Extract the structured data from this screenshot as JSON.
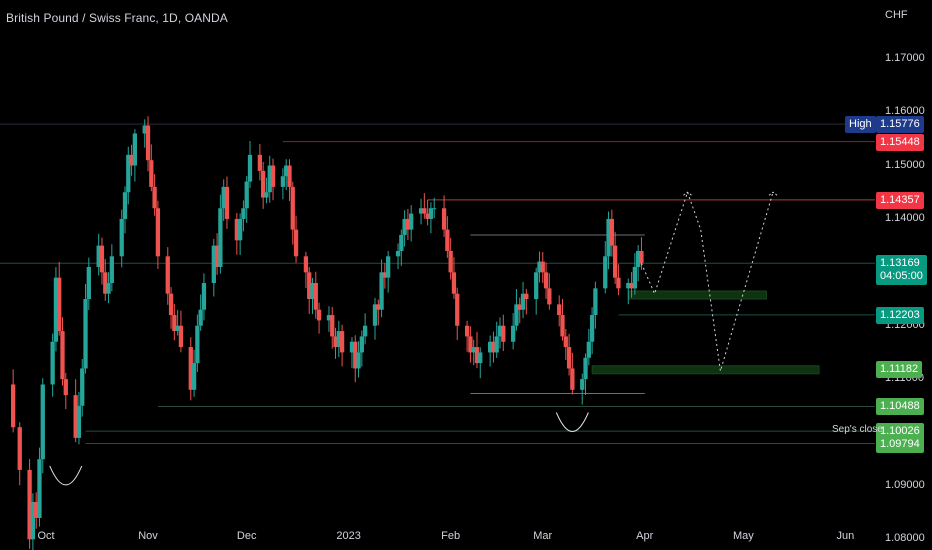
{
  "header": {
    "title": "British Pound / Swiss Franc, 1D, OANDA"
  },
  "axis": {
    "currency": "CHF"
  },
  "watermark": {
    "main": "",
    "sub": ""
  },
  "colors": {
    "up": "#26a69a",
    "down": "#ef5350",
    "green_label": "#4caf50",
    "teal_label": "#089981",
    "red_label": "#f23645",
    "navy_label": "#1e3a8a"
  },
  "chart_data": {
    "type": "candlestick",
    "title": "British Pound / Swiss Franc, 1D, OANDA",
    "symbol": "GBPCHF",
    "ylabel": "CHF",
    "ylim": [
      1.078,
      1.181
    ],
    "x_range": [
      "2022-09-17",
      "2023-06-10"
    ],
    "y_ticks": [
      1.08,
      1.09,
      1.1,
      1.11,
      1.12,
      1.13,
      1.14,
      1.15,
      1.16,
      1.17
    ],
    "y_tick_labels": [
      "1.08000",
      "1.09000",
      "",
      "1.11000",
      "1.12000",
      "",
      "1.14000",
      "1.15000",
      "1.16000",
      "1.17000"
    ],
    "x_ticks": [
      {
        "label": "Oct",
        "date": "2022-10-01"
      },
      {
        "label": "Nov",
        "date": "2022-11-01"
      },
      {
        "label": "Dec",
        "date": "2022-12-01"
      },
      {
        "label": "2023",
        "date": "2023-01-01"
      },
      {
        "label": "Feb",
        "date": "2023-02-01"
      },
      {
        "label": "Mar",
        "date": "2023-03-01"
      },
      {
        "label": "Apr",
        "date": "2023-04-01"
      },
      {
        "label": "May",
        "date": "2023-05-01"
      },
      {
        "label": "Jun",
        "date": "2023-06-01"
      }
    ],
    "close_path": [
      [
        "2022-09-19",
        1.109
      ],
      [
        "2022-09-21",
        1.101
      ],
      [
        "2022-09-23",
        1.093
      ],
      [
        "2022-09-26",
        1.08
      ],
      [
        "2022-09-27",
        1.087
      ],
      [
        "2022-09-28",
        1.084
      ],
      [
        "2022-09-29",
        1.095
      ],
      [
        "2022-09-30",
        1.109
      ],
      [
        "2022-10-03",
        1.117
      ],
      [
        "2022-10-04",
        1.129
      ],
      [
        "2022-10-05",
        1.119
      ],
      [
        "2022-10-06",
        1.11
      ],
      [
        "2022-10-07",
        1.107
      ],
      [
        "2022-10-10",
        1.099
      ],
      [
        "2022-10-11",
        1.105
      ],
      [
        "2022-10-12",
        1.112
      ],
      [
        "2022-10-13",
        1.125
      ],
      [
        "2022-10-14",
        1.131
      ],
      [
        "2022-10-17",
        1.135
      ],
      [
        "2022-10-18",
        1.13
      ],
      [
        "2022-10-19",
        1.126
      ],
      [
        "2022-10-20",
        1.128
      ],
      [
        "2022-10-21",
        1.133
      ],
      [
        "2022-10-24",
        1.14
      ],
      [
        "2022-10-25",
        1.145
      ],
      [
        "2022-10-26",
        1.152
      ],
      [
        "2022-10-27",
        1.15
      ],
      [
        "2022-10-28",
        1.156
      ],
      [
        "2022-10-31",
        1.1575
      ],
      [
        "2022-11-01",
        1.151
      ],
      [
        "2022-11-02",
        1.146
      ],
      [
        "2022-11-03",
        1.142
      ],
      [
        "2022-11-04",
        1.133
      ],
      [
        "2022-11-07",
        1.126
      ],
      [
        "2022-11-08",
        1.122
      ],
      [
        "2022-11-09",
        1.119
      ],
      [
        "2022-11-10",
        1.12
      ],
      [
        "2022-11-11",
        1.116
      ],
      [
        "2022-11-14",
        1.108
      ],
      [
        "2022-11-15",
        1.113
      ],
      [
        "2022-11-16",
        1.12
      ],
      [
        "2022-11-17",
        1.123
      ],
      [
        "2022-11-18",
        1.128
      ],
      [
        "2022-11-21",
        1.135
      ],
      [
        "2022-11-22",
        1.131
      ],
      [
        "2022-11-23",
        1.142
      ],
      [
        "2022-11-24",
        1.146
      ],
      [
        "2022-11-25",
        1.14
      ],
      [
        "2022-11-28",
        1.136
      ],
      [
        "2022-11-29",
        1.14
      ],
      [
        "2022-11-30",
        1.142
      ],
      [
        "2022-12-01",
        1.147
      ],
      [
        "2022-12-02",
        1.152
      ],
      [
        "2022-12-05",
        1.149
      ],
      [
        "2022-12-06",
        1.144
      ],
      [
        "2022-12-07",
        1.145
      ],
      [
        "2022-12-08",
        1.15
      ],
      [
        "2022-12-09",
        1.146
      ],
      [
        "2022-12-12",
        1.148
      ],
      [
        "2022-12-13",
        1.15
      ],
      [
        "2022-12-14",
        1.146
      ],
      [
        "2022-12-15",
        1.138
      ],
      [
        "2022-12-16",
        1.133
      ],
      [
        "2022-12-19",
        1.13
      ],
      [
        "2022-12-20",
        1.125
      ],
      [
        "2022-12-21",
        1.128
      ],
      [
        "2022-12-22",
        1.123
      ],
      [
        "2022-12-23",
        1.121
      ],
      [
        "2022-12-26",
        1.122
      ],
      [
        "2022-12-27",
        1.118
      ],
      [
        "2022-12-28",
        1.116
      ],
      [
        "2022-12-29",
        1.119
      ],
      [
        "2022-12-30",
        1.115
      ],
      [
        "2023-01-02",
        1.117
      ],
      [
        "2023-01-03",
        1.112
      ],
      [
        "2023-01-04",
        1.115
      ],
      [
        "2023-01-05",
        1.118
      ],
      [
        "2023-01-06",
        1.12
      ],
      [
        "2023-01-09",
        1.124
      ],
      [
        "2023-01-10",
        1.123
      ],
      [
        "2023-01-11",
        1.13
      ],
      [
        "2023-01-12",
        1.129
      ],
      [
        "2023-01-13",
        1.133
      ],
      [
        "2023-01-16",
        1.134
      ],
      [
        "2023-01-17",
        1.137
      ],
      [
        "2023-01-18",
        1.14
      ],
      [
        "2023-01-19",
        1.138
      ],
      [
        "2023-01-20",
        1.141
      ],
      [
        "2023-01-23",
        1.142
      ],
      [
        "2023-01-24",
        1.141
      ],
      [
        "2023-01-25",
        1.14
      ],
      [
        "2023-01-26",
        1.142
      ],
      [
        "2023-01-27",
        1.142
      ],
      [
        "2023-01-30",
        1.138
      ],
      [
        "2023-01-31",
        1.134
      ],
      [
        "2023-02-01",
        1.13
      ],
      [
        "2023-02-02",
        1.126
      ],
      [
        "2023-02-03",
        1.12
      ],
      [
        "2023-02-06",
        1.118
      ],
      [
        "2023-02-07",
        1.115
      ],
      [
        "2023-02-08",
        1.116
      ],
      [
        "2023-02-09",
        1.113
      ],
      [
        "2023-02-10",
        1.115
      ],
      [
        "2023-02-13",
        1.117
      ],
      [
        "2023-02-14",
        1.115
      ],
      [
        "2023-02-15",
        1.118
      ],
      [
        "2023-02-16",
        1.12
      ],
      [
        "2023-02-17",
        1.117
      ],
      [
        "2023-02-20",
        1.12
      ],
      [
        "2023-02-21",
        1.124
      ],
      [
        "2023-02-22",
        1.123
      ],
      [
        "2023-02-23",
        1.126
      ],
      [
        "2023-02-24",
        1.125
      ],
      [
        "2023-02-27",
        1.13
      ],
      [
        "2023-02-28",
        1.132
      ],
      [
        "2023-03-01",
        1.13
      ],
      [
        "2023-03-02",
        1.127
      ],
      [
        "2023-03-03",
        1.124
      ],
      [
        "2023-03-06",
        1.122
      ],
      [
        "2023-03-07",
        1.118
      ],
      [
        "2023-03-08",
        1.116
      ],
      [
        "2023-03-09",
        1.112
      ],
      [
        "2023-03-10",
        1.108
      ],
      [
        "2023-03-13",
        1.11
      ],
      [
        "2023-03-14",
        1.114
      ],
      [
        "2023-03-15",
        1.117
      ],
      [
        "2023-03-16",
        1.122
      ],
      [
        "2023-03-17",
        1.127
      ],
      [
        "2023-03-20",
        1.133
      ],
      [
        "2023-03-21",
        1.14
      ],
      [
        "2023-03-22",
        1.135
      ],
      [
        "2023-03-23",
        1.129
      ],
      [
        "2023-03-24",
        1.127
      ],
      [
        "2023-03-27",
        1.128
      ],
      [
        "2023-03-28",
        1.127
      ],
      [
        "2023-03-29",
        1.131
      ],
      [
        "2023-03-30",
        1.134
      ],
      [
        "2023-03-31",
        1.1317
      ]
    ],
    "hlines": [
      {
        "value": 1.15776,
        "color": "#2a2e39",
        "from": "2022-09-17",
        "style": "solid"
      },
      {
        "value": 1.15448,
        "color": "#7a2b30",
        "from": "2022-12-12",
        "style": "solid"
      },
      {
        "value": 1.14357,
        "color": "#b33a3f",
        "from": "2023-01-25",
        "style": "solid"
      },
      {
        "value": 1.13169,
        "color": "#1f4d48",
        "from": "2022-09-17",
        "style": "solid"
      },
      {
        "value": 1.12203,
        "color": "#1f4d48",
        "from": "2023-03-24",
        "style": "solid"
      },
      {
        "value": 1.10488,
        "color": "#2b4a3d",
        "from": "2022-11-04",
        "style": "solid"
      },
      {
        "value": 1.10026,
        "color": "#2b4a3d",
        "from": "2022-10-13",
        "style": "solid"
      },
      {
        "value": 1.09794,
        "color": "#2b4a3d",
        "from": "2022-10-13",
        "style": "solid"
      }
    ],
    "range_lines": [
      {
        "value": 1.137,
        "from": "2023-02-07",
        "to": "2023-04-01"
      },
      {
        "value": 1.1073,
        "from": "2023-02-07",
        "to": "2023-04-01"
      }
    ],
    "zones": [
      {
        "low": 1.125,
        "high": 1.1265,
        "from": "2023-03-27",
        "to": "2023-05-08"
      },
      {
        "low": 1.111,
        "high": 1.1125,
        "from": "2023-03-16",
        "to": "2023-05-24"
      }
    ],
    "projection": [
      [
        "2023-03-31",
        1.1317
      ],
      [
        "2023-04-04",
        1.126
      ],
      [
        "2023-04-14",
        1.145
      ],
      [
        "2023-04-18",
        1.138
      ],
      [
        "2023-04-24",
        1.1115
      ],
      [
        "2023-05-10",
        1.145
      ]
    ],
    "arcs": [
      {
        "center": "2022-10-07",
        "value": 1.093
      },
      {
        "center": "2023-03-10",
        "value": 1.103
      }
    ],
    "price_labels": [
      {
        "prefix": "High",
        "text": "1.15776",
        "value": 1.15776,
        "color": "#1e3a8a"
      },
      {
        "prefix": "",
        "text": "1.15448",
        "value": 1.15448,
        "color": "#f23645"
      },
      {
        "prefix": "",
        "text": "1.14357",
        "value": 1.14357,
        "color": "#f23645"
      },
      {
        "prefix": "",
        "text": "1.13169",
        "sub": "04:05:00",
        "value": 1.13169,
        "color": "#089981"
      },
      {
        "prefix": "",
        "text": "1.12203",
        "value": 1.12203,
        "color": "#089981"
      },
      {
        "prefix": "",
        "text": "1.11182",
        "value": 1.11182,
        "color": "#4caf50"
      },
      {
        "prefix": "",
        "text": "1.10488",
        "value": 1.10488,
        "color": "#4caf50"
      },
      {
        "prefix": "",
        "text": "1.10026",
        "value": 1.10026,
        "color": "#4caf50"
      },
      {
        "prefix": "",
        "text": "1.09794",
        "value": 1.09794,
        "color": "#4caf50"
      }
    ],
    "annotations": [
      {
        "text": "Sep's close",
        "value": 1.10026
      }
    ]
  }
}
